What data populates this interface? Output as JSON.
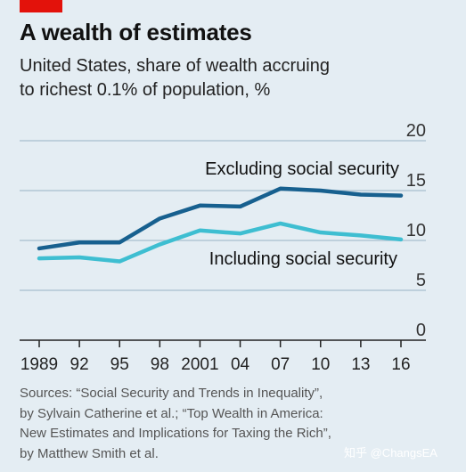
{
  "header": {
    "title": "A wealth of estimates",
    "subtitle_lines": [
      "United States, share of wealth accruing",
      "to richest 0.1% of population, %"
    ]
  },
  "chart_data": {
    "type": "line",
    "title": "A wealth of estimates",
    "subtitle": "United States, share of wealth accruing to richest 0.1% of population, %",
    "xlabel": "",
    "ylabel": "",
    "x": [
      1989,
      1992,
      1995,
      1998,
      2001,
      2004,
      2007,
      2010,
      2013,
      2016
    ],
    "x_tick_labels": [
      "1989",
      "92",
      "95",
      "98",
      "2001",
      "04",
      "07",
      "10",
      "13",
      "16"
    ],
    "ylim": [
      0,
      20
    ],
    "y_ticks": [
      0,
      5,
      10,
      15,
      20
    ],
    "y_tick_labels": [
      "0",
      "5",
      "10",
      "15",
      "20"
    ],
    "grid": "horizontal",
    "series": [
      {
        "name": "Excluding social security",
        "color": "#17608f",
        "values": [
          9.2,
          9.8,
          9.8,
          12.2,
          13.5,
          13.4,
          15.2,
          15.0,
          14.6,
          14.5
        ]
      },
      {
        "name": "Including social security",
        "color": "#3ebed1",
        "values": [
          8.2,
          8.3,
          7.9,
          9.6,
          11.0,
          10.7,
          11.7,
          10.8,
          10.5,
          10.1
        ]
      }
    ]
  },
  "sources": {
    "lines": [
      "Sources: “Social Security and Trends in Inequality”,",
      "by Sylvain Catherine et al.; “Top Wealth in America:",
      "New Estimates and Implications for Taxing the Rich”,",
      "by Matthew Smith et al."
    ]
  },
  "watermark": "知乎 @ChangsEA",
  "colors": {
    "background": "#e4edf3",
    "brand_tag": "#e3120b",
    "grid": "#a8bfcf",
    "axis": "#222222"
  }
}
